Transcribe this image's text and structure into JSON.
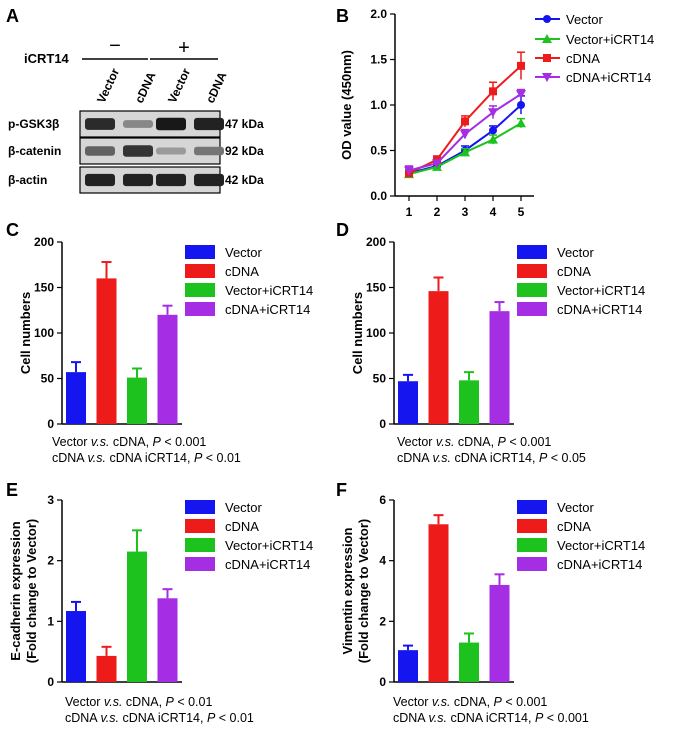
{
  "colors": {
    "vector": "#1515f0",
    "cdna": "#ee1b1b",
    "vector_icrt14": "#1ec21e",
    "cdna_icrt14": "#a52de3",
    "axis": "#000000"
  },
  "panel_a": {
    "letter": "A",
    "treatment_label": "iCRT14",
    "minus_sign": "−",
    "plus_sign": "+",
    "lanes": [
      "Vector",
      "cDNA",
      "Vector",
      "cDNA"
    ],
    "rows": [
      {
        "protein": "p-GSK3β",
        "size": "47 kDa",
        "intensity": [
          0.85,
          0.35,
          0.95,
          0.9
        ]
      },
      {
        "protein": "β-catenin",
        "size": "92 kDa",
        "intensity": [
          0.55,
          0.8,
          0.25,
          0.45
        ]
      },
      {
        "protein": "β-actin",
        "size": "42 kDa",
        "intensity": [
          0.9,
          0.9,
          0.9,
          0.9
        ]
      }
    ]
  },
  "chart_data": [
    {
      "panel": "B",
      "type": "line",
      "ylabel": "OD value (450nm)",
      "x": [
        1,
        2,
        3,
        4,
        5
      ],
      "xticks": [
        "1",
        "2",
        "3",
        "4",
        "5"
      ],
      "ylim": [
        0,
        2.0
      ],
      "yticks": [
        "0.0",
        "0.5",
        "1.0",
        "1.5",
        "2.0"
      ],
      "legend_position": "right",
      "series": [
        {
          "name": "Vector",
          "color_key": "vector",
          "marker": "circle",
          "values": [
            0.25,
            0.33,
            0.5,
            0.72,
            1.0
          ],
          "errors": [
            0.03,
            0.03,
            0.05,
            0.05,
            0.1
          ]
        },
        {
          "name": "Vector+iCRT14",
          "color_key": "vector_icrt14",
          "marker": "triangle-up",
          "values": [
            0.24,
            0.32,
            0.48,
            0.62,
            0.8
          ],
          "errors": [
            0.03,
            0.03,
            0.04,
            0.05,
            0.05
          ]
        },
        {
          "name": "cDNA",
          "color_key": "cdna",
          "marker": "square",
          "values": [
            0.25,
            0.4,
            0.82,
            1.15,
            1.43
          ],
          "errors": [
            0.03,
            0.04,
            0.06,
            0.1,
            0.15
          ]
        },
        {
          "name": "cDNA+iCRT14",
          "color_key": "cdna_icrt14",
          "marker": "triangle-down",
          "values": [
            0.28,
            0.36,
            0.68,
            0.92,
            1.12
          ],
          "errors": [
            0.05,
            0.03,
            0.05,
            0.07,
            0.05
          ]
        }
      ]
    },
    {
      "panel": "C",
      "type": "bar",
      "ylabel": "Cell numbers",
      "categories": [
        "Vector",
        "cDNA",
        "Vector+iCRT14",
        "cDNA+iCRT14"
      ],
      "color_keys": [
        "vector",
        "cdna",
        "vector_icrt14",
        "cdna_icrt14"
      ],
      "values": [
        57,
        160,
        51,
        120
      ],
      "errors": [
        11,
        18,
        10,
        10
      ],
      "ylim": [
        0,
        200
      ],
      "yticks": [
        "0",
        "50",
        "100",
        "150",
        "200"
      ],
      "legend_position": "right",
      "stats_line1": {
        "a": "Vector",
        "vs": "v.s.",
        "b": "cDNA,",
        "p": "P",
        "rest": "< 0.001"
      },
      "stats_line2": {
        "a": "cDNA",
        "vs": "v.s.",
        "b": "cDNA iCRT14,",
        "p": "P",
        "rest": "< 0.01"
      }
    },
    {
      "panel": "D",
      "type": "bar",
      "ylabel": "Cell numbers",
      "categories": [
        "Vector",
        "cDNA",
        "Vector+iCRT14",
        "cDNA+iCRT14"
      ],
      "color_keys": [
        "vector",
        "cdna",
        "vector_icrt14",
        "cdna_icrt14"
      ],
      "values": [
        47,
        146,
        48,
        124
      ],
      "errors": [
        7,
        15,
        9,
        10
      ],
      "ylim": [
        0,
        200
      ],
      "yticks": [
        "0",
        "50",
        "100",
        "150",
        "200"
      ],
      "legend_position": "right",
      "stats_line1": {
        "a": "Vector",
        "vs": "v.s.",
        "b": "cDNA,",
        "p": "P",
        "rest": "< 0.001"
      },
      "stats_line2": {
        "a": "cDNA",
        "vs": "v.s.",
        "b": "cDNA iCRT14,",
        "p": "P",
        "rest": "< 0.05"
      }
    },
    {
      "panel": "E",
      "type": "bar",
      "ylabel": "E-cadherin expression",
      "ylabel2": "(Fold change to Vector)",
      "categories": [
        "Vector",
        "cDNA",
        "Vector+iCRT14",
        "cDNA+iCRT14"
      ],
      "color_keys": [
        "vector",
        "cdna",
        "vector_icrt14",
        "cdna_icrt14"
      ],
      "values": [
        1.17,
        0.43,
        2.15,
        1.38
      ],
      "errors": [
        0.15,
        0.15,
        0.35,
        0.15
      ],
      "ylim": [
        0,
        3
      ],
      "yticks": [
        "0",
        "1",
        "2",
        "3"
      ],
      "legend_position": "right",
      "stats_line1": {
        "a": "Vector",
        "vs": "v.s.",
        "b": "cDNA,",
        "p": "P",
        "rest": "< 0.01"
      },
      "stats_line2": {
        "a": "cDNA",
        "vs": "v.s.",
        "b": "cDNA iCRT14,",
        "p": "P",
        "rest": "< 0.01"
      }
    },
    {
      "panel": "F",
      "type": "bar",
      "ylabel": "Vimentin expression",
      "ylabel2": "(Fold change to Vector)",
      "categories": [
        "Vector",
        "cDNA",
        "Vector+iCRT14",
        "cDNA+iCRT14"
      ],
      "color_keys": [
        "vector",
        "cdna",
        "vector_icrt14",
        "cdna_icrt14"
      ],
      "values": [
        1.05,
        5.2,
        1.3,
        3.2
      ],
      "errors": [
        0.15,
        0.3,
        0.3,
        0.35
      ],
      "ylim": [
        0,
        6
      ],
      "yticks": [
        "0",
        "2",
        "4",
        "6"
      ],
      "legend_position": "right",
      "stats_line1": {
        "a": "Vector",
        "vs": "v.s.",
        "b": "cDNA,",
        "p": "P",
        "rest": "< 0.001"
      },
      "stats_line2": {
        "a": "cDNA",
        "vs": "v.s.",
        "b": "cDNA iCRT14,",
        "p": "P",
        "rest": "< 0.001"
      }
    }
  ]
}
